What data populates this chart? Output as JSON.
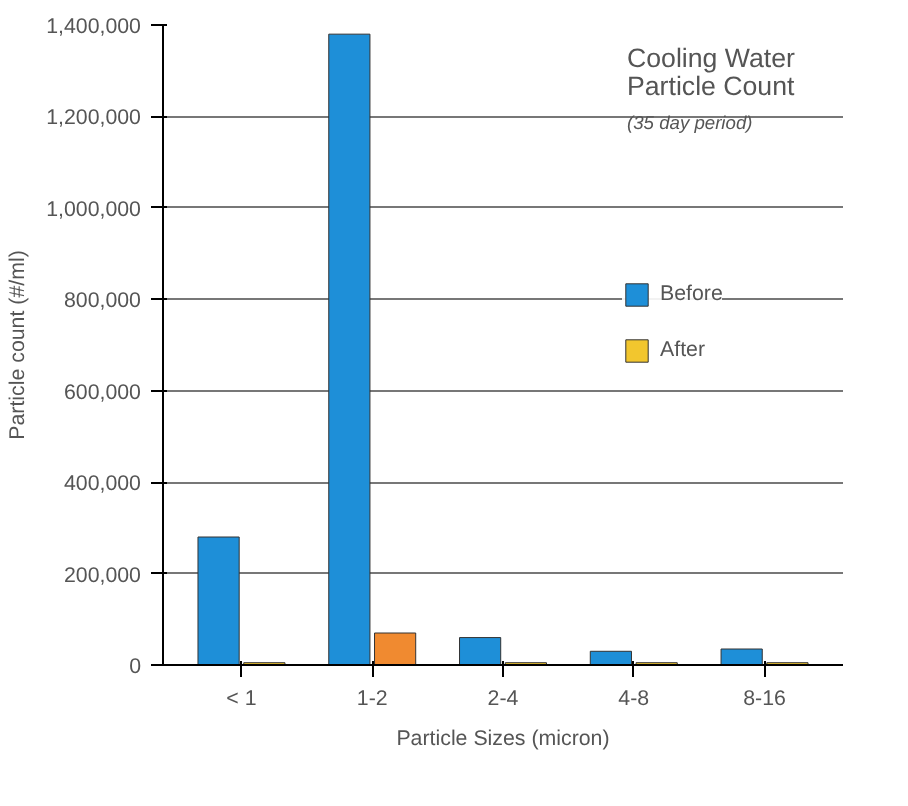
{
  "chart_data": {
    "type": "bar",
    "title": "Cooling Water Particle Count",
    "subtitle": "(35 day period)",
    "xlabel": "Particle Sizes (micron)",
    "ylabel": "Particle count (#/ml)",
    "categories": [
      "< 1",
      "1-2",
      "2-4",
      "4-8",
      "8-16"
    ],
    "series": [
      {
        "name": "Before",
        "color": "#1e8fd8",
        "values": [
          280000,
          1380000,
          60000,
          30000,
          35000
        ]
      },
      {
        "name": "After",
        "color": "#f2c62e",
        "colors": [
          "#f2c62e",
          "#f08a30",
          "#f2c62e",
          "#f2c62e",
          "#f2c62e"
        ],
        "values": [
          5000,
          70000,
          5000,
          5000,
          5000
        ]
      }
    ],
    "ylim": [
      0,
      1400000
    ],
    "yticks": [
      {
        "value": 0,
        "label": "0"
      },
      {
        "value": 200000,
        "label": "200,000"
      },
      {
        "value": 400000,
        "label": "400,000"
      },
      {
        "value": 600000,
        "label": "600,000"
      },
      {
        "value": 800000,
        "label": "800,000"
      },
      {
        "value": 1000000,
        "label": "1,000,000"
      },
      {
        "value": 1200000,
        "label": "1,200,000"
      },
      {
        "value": 1400000,
        "label": "1,400,000"
      }
    ],
    "grid": "y",
    "legend": "top right"
  }
}
